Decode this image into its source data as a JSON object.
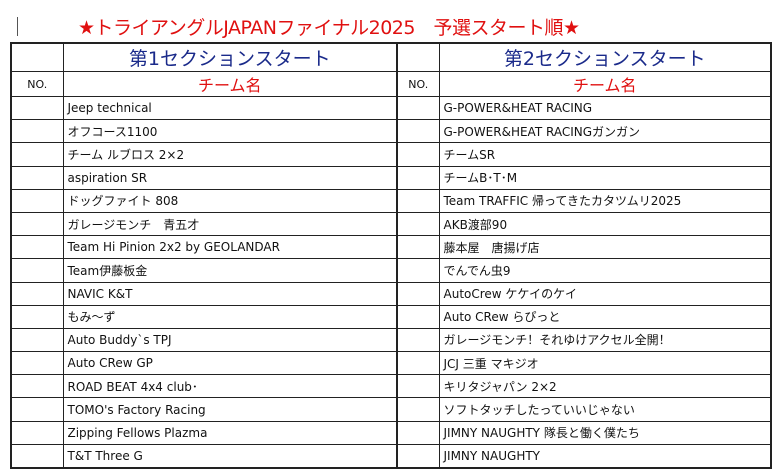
{
  "title": "★トライアングルJAPANファイナル2025　予選スタート順★",
  "sections": [
    {
      "title": "第1セクションスタート",
      "no_label": "NO.",
      "team_label": "チーム名",
      "teams": [
        "Jeep technical",
        "オフコース1100",
        "チーム ルブロス 2×2",
        "aspiration SR",
        "ドッグファイト 808",
        "ガレージモンチ　青五才",
        "Team Hi Pinion 2x2 by GEOLANDAR",
        "Team伊藤板金",
        "NAVIC K&T",
        "もみ～ず",
        "Auto Buddy`s TPJ",
        "Auto CRew GP",
        "ROAD BEAT 4x4 club･",
        "TOMO's Factory Racing",
        "Zipping Fellows Plazma",
        "T&T Three G"
      ]
    },
    {
      "title": "第2セクションスタート",
      "no_label": "NO.",
      "team_label": "チーム名",
      "teams": [
        "G-POWER&HEAT RACING",
        "G-POWER&HEAT RACINGガンガン",
        "チームSR",
        "チームB･T･M",
        "Team TRAFFIC 帰ってきたカタツムリ2025",
        "AKB渡部90",
        "藤本屋　唐揚げ店",
        "でんでん虫9",
        "AutoCrew ケケイのケイ",
        "Auto CRew らぴっと",
        "ガレージモンチ！それゆけアクセル全開！",
        "JCJ 三重 マキジオ",
        "キリタジャパン 2×2",
        "ソフトタッチしたっていいじゃない",
        "JIMNY NAUGHTY 隊長と働く僕たち",
        "JIMNY NAUGHTY"
      ]
    }
  ]
}
